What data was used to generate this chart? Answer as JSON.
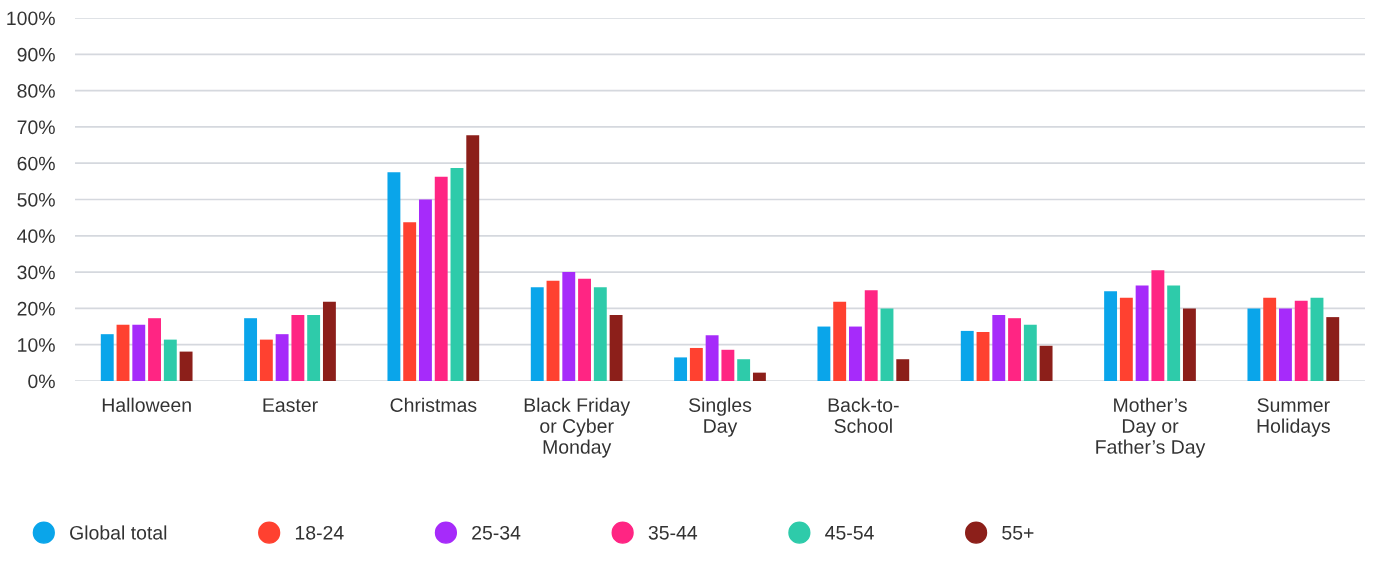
{
  "chart_data": {
    "type": "bar",
    "categories": [
      "Halloween",
      "Easter",
      "Christmas",
      "Black Friday\nor Cyber\nMonday",
      "Singles\nDay",
      "Back-to-\nSchool",
      null,
      "Mother’s\nDay or\nFather’s Day",
      "Summer\nHolidays"
    ],
    "series": [
      {
        "name": "Global total",
        "color": "#0aa5ea",
        "values": [
          12.9,
          17.3,
          57.5,
          25.8,
          6.5,
          15,
          13.8,
          24.7,
          20
        ]
      },
      {
        "name": "18-24",
        "color": "#ff4130",
        "values": [
          15.5,
          11.4,
          43.7,
          27.6,
          9.1,
          21.8,
          13.5,
          22.9,
          22.9
        ]
      },
      {
        "name": "25-34",
        "color": "#a62bfa",
        "values": [
          15.5,
          12.9,
          50,
          30,
          12.6,
          15,
          18.2,
          26.3,
          20
        ]
      },
      {
        "name": "35-44",
        "color": "#ff2583",
        "values": [
          17.3,
          18.2,
          56.3,
          28.2,
          8.6,
          25,
          17.3,
          30.5,
          22.1
        ]
      },
      {
        "name": "45-54",
        "color": "#2ecbaa",
        "values": [
          11.4,
          18.2,
          58.7,
          25.8,
          6,
          20,
          15.5,
          26.3,
          22.9
        ]
      },
      {
        "name": "55+",
        "color": "#8c1f1a",
        "values": [
          8.1,
          21.8,
          67.7,
          18.2,
          2.3,
          6,
          9.7,
          20,
          17.6
        ]
      }
    ],
    "ylim": [
      0,
      100
    ],
    "yticks": [
      {
        "value": 0,
        "label": "0%"
      },
      {
        "value": 10,
        "label": "10%"
      },
      {
        "value": 20,
        "label": "20%"
      },
      {
        "value": 30,
        "label": "30%"
      },
      {
        "value": 40,
        "label": "40%"
      },
      {
        "value": 50,
        "label": "50%"
      },
      {
        "value": 60,
        "label": "60%"
      },
      {
        "value": 70,
        "label": "70%"
      },
      {
        "value": 80,
        "label": "80%"
      },
      {
        "value": 90,
        "label": "90%"
      },
      {
        "value": 100,
        "label": "100%"
      }
    ],
    "grid": "y",
    "legend": "bottom"
  }
}
